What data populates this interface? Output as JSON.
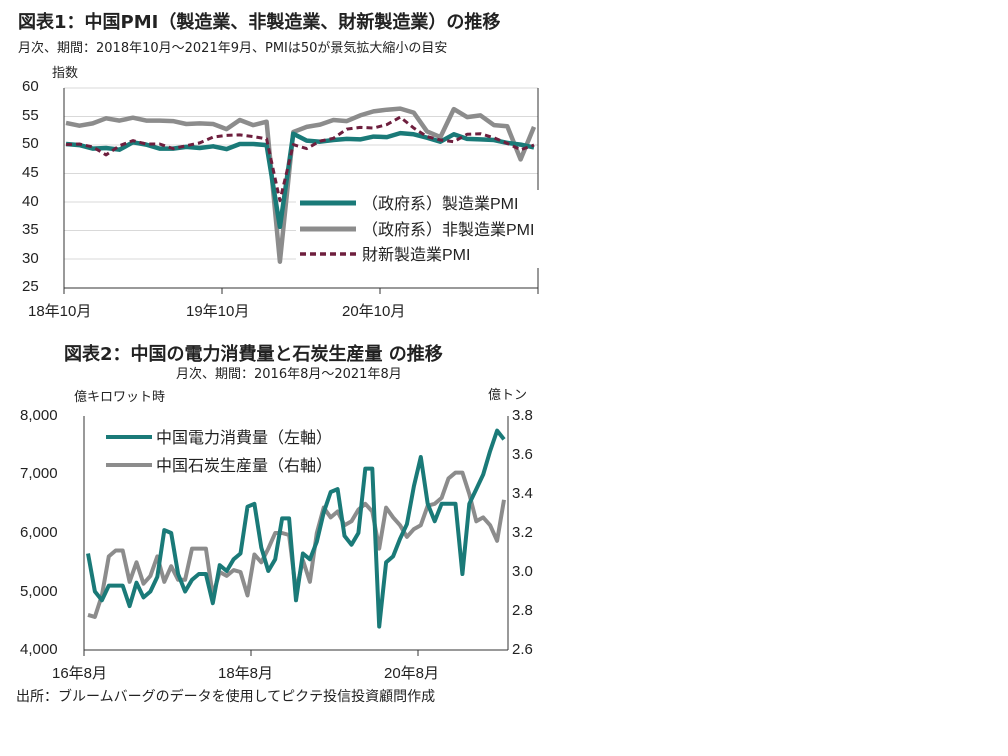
{
  "chart1": {
    "title": "図表1：中国PMI（製造業、非製造業、財新製造業）の推移",
    "subtitle": "月次、期間：2018年10月～2021年9月、PMIは50が景気拡大縮小の目安",
    "ylabel": "指数",
    "yticks": [
      "60",
      "55",
      "50",
      "45",
      "40",
      "35",
      "30",
      "25"
    ],
    "xticks": [
      "18年10月",
      "19年10月",
      "20年10月"
    ]
  },
  "chart2": {
    "title": "図表2：中国の電力消費量と石炭生産量 の推移",
    "subtitle": "月次、期間：2016年8月～2021年8月",
    "ylabel_left": "億キロワット時",
    "ylabel_right": "億トン",
    "yticks_left": [
      "8,000",
      "7,000",
      "6,000",
      "5,000",
      "4,000"
    ],
    "yticks_right": [
      "3.8",
      "3.6",
      "3.4",
      "3.2",
      "3.0",
      "2.8",
      "2.6"
    ],
    "xticks": [
      "16年8月",
      "18年8月",
      "20年8月"
    ]
  },
  "source": "出所：ブルームバーグのデータを使用してピクテ投信投資顧問作成",
  "colors": {
    "teal": "#1a7a78",
    "gray": "#8c8c8c",
    "maroon": "#6e1f3e"
  },
  "chart_data": [
    {
      "type": "line",
      "title": "図表1：中国PMI（製造業、非製造業、財新製造業）の推移",
      "subtitle": "月次、期間：2018年10月～2021年9月、PMIは50が景気拡大縮小の目安",
      "ylabel": "指数",
      "xlabel": "",
      "ylim": [
        25,
        60
      ],
      "yticks": [
        25,
        30,
        35,
        40,
        45,
        50,
        55,
        60
      ],
      "x": [
        "2018-10",
        "2018-11",
        "2018-12",
        "2019-01",
        "2019-02",
        "2019-03",
        "2019-04",
        "2019-05",
        "2019-06",
        "2019-07",
        "2019-08",
        "2019-09",
        "2019-10",
        "2019-11",
        "2019-12",
        "2020-01",
        "2020-02",
        "2020-03",
        "2020-04",
        "2020-05",
        "2020-06",
        "2020-07",
        "2020-08",
        "2020-09",
        "2020-10",
        "2020-11",
        "2020-12",
        "2021-01",
        "2021-02",
        "2021-03",
        "2021-04",
        "2021-05",
        "2021-06",
        "2021-07",
        "2021-08",
        "2021-09"
      ],
      "xtick_labels": {
        "2018-10": "18年10月",
        "2019-10": "19年10月",
        "2020-10": "20年10月"
      },
      "legend_position": "center-right",
      "series": [
        {
          "name": "（政府系）製造業PMI",
          "style": "solid",
          "color": "#1a7a78",
          "values": [
            50.2,
            50.0,
            49.4,
            49.5,
            49.2,
            50.5,
            50.1,
            49.4,
            49.4,
            49.7,
            49.5,
            49.8,
            49.3,
            50.2,
            50.2,
            50.0,
            35.7,
            52.0,
            50.8,
            50.6,
            50.9,
            51.1,
            51.0,
            51.5,
            51.4,
            52.1,
            51.9,
            51.3,
            50.6,
            51.9,
            51.1,
            51.0,
            50.9,
            50.4,
            50.1,
            49.6
          ]
        },
        {
          "name": "（政府系）非製造業PMI",
          "style": "solid",
          "color": "#8c8c8c",
          "values": [
            53.9,
            53.4,
            53.8,
            54.7,
            54.3,
            54.8,
            54.3,
            54.3,
            54.2,
            53.7,
            53.8,
            53.7,
            52.8,
            54.4,
            53.5,
            54.1,
            29.6,
            52.3,
            53.2,
            53.6,
            54.4,
            54.2,
            55.2,
            55.9,
            56.2,
            56.4,
            55.7,
            52.4,
            51.4,
            56.3,
            54.9,
            55.2,
            53.5,
            53.3,
            47.5,
            53.2
          ]
        },
        {
          "name": "財新製造業PMI",
          "style": "dashed",
          "color": "#6e1f3e",
          "values": [
            50.1,
            50.2,
            49.7,
            48.3,
            49.9,
            50.8,
            50.2,
            50.2,
            49.4,
            49.9,
            50.4,
            51.4,
            51.7,
            51.8,
            51.5,
            51.1,
            40.3,
            50.1,
            49.4,
            50.7,
            51.2,
            52.8,
            53.1,
            53.0,
            53.6,
            54.9,
            53.0,
            51.5,
            50.9,
            50.6,
            51.9,
            52.0,
            51.3,
            50.3,
            49.2,
            50.0
          ]
        }
      ]
    },
    {
      "type": "line",
      "title": "図表2：中国の電力消費量と石炭生産量 の推移",
      "subtitle": "月次、期間：2016年8月～2021年8月",
      "ylabel_left": "億キロワット時",
      "ylabel_right": "億トン",
      "xlabel": "",
      "ylim_left": [
        4000,
        8000
      ],
      "yticks_left": [
        4000,
        5000,
        6000,
        7000,
        8000
      ],
      "ylim_right": [
        2.6,
        3.8
      ],
      "yticks_right": [
        2.6,
        2.8,
        3.0,
        3.2,
        3.4,
        3.6,
        3.8
      ],
      "x": [
        "2016-08",
        "2016-09",
        "2016-10",
        "2016-11",
        "2016-12",
        "2017-01",
        "2017-02",
        "2017-03",
        "2017-04",
        "2017-05",
        "2017-06",
        "2017-07",
        "2017-08",
        "2017-09",
        "2017-10",
        "2017-11",
        "2017-12",
        "2018-01",
        "2018-02",
        "2018-03",
        "2018-04",
        "2018-05",
        "2018-06",
        "2018-07",
        "2018-08",
        "2018-09",
        "2018-10",
        "2018-11",
        "2018-12",
        "2019-01",
        "2019-02",
        "2019-03",
        "2019-04",
        "2019-05",
        "2019-06",
        "2019-07",
        "2019-08",
        "2019-09",
        "2019-10",
        "2019-11",
        "2019-12",
        "2020-01",
        "2020-02",
        "2020-03",
        "2020-04",
        "2020-05",
        "2020-06",
        "2020-07",
        "2020-08",
        "2020-09",
        "2020-10",
        "2020-11",
        "2020-12",
        "2021-01",
        "2021-02",
        "2021-03",
        "2021-04",
        "2021-05",
        "2021-06",
        "2021-07",
        "2021-08"
      ],
      "xtick_labels": {
        "2016-08": "16年8月",
        "2018-08": "18年8月",
        "2020-08": "20年8月"
      },
      "legend_position": "top-left",
      "series": [
        {
          "name": "中国電力消費量（左軸）",
          "axis": "left",
          "color": "#1a7a78",
          "values": [
            5650,
            5000,
            4850,
            5100,
            5100,
            5100,
            4750,
            5150,
            4900,
            5000,
            5250,
            6050,
            6000,
            5300,
            5000,
            5200,
            5300,
            5300,
            4800,
            5450,
            5350,
            5550,
            5650,
            6450,
            6500,
            5750,
            5350,
            5550,
            6250,
            6250,
            4850,
            5650,
            5550,
            5850,
            6350,
            6700,
            6750,
            5950,
            5800,
            6000,
            7100,
            7100,
            4400,
            5500,
            5600,
            5900,
            6150,
            6800,
            7300,
            6500,
            6200,
            6500,
            6500,
            6500,
            5300,
            6500,
            6750,
            7000,
            7400,
            7750,
            7600
          ]
        },
        {
          "name": "中国石炭生産量（右軸）",
          "axis": "right",
          "color": "#8c8c8c",
          "values": [
            2.78,
            2.77,
            2.88,
            3.08,
            3.11,
            3.11,
            2.95,
            3.05,
            2.94,
            2.98,
            3.08,
            2.95,
            3.03,
            2.96,
            2.96,
            3.12,
            3.12,
            3.12,
            2.88,
            3.0,
            2.98,
            3.01,
            3.0,
            2.88,
            3.09,
            3.05,
            3.12,
            3.2,
            3.2,
            3.19,
            2.9,
            3.06,
            2.95,
            3.2,
            3.33,
            3.28,
            3.31,
            3.24,
            3.26,
            3.32,
            3.35,
            3.31,
            3.12,
            3.33,
            3.28,
            3.24,
            3.18,
            3.22,
            3.24,
            3.34,
            3.35,
            3.38,
            3.48,
            3.51,
            3.51,
            3.4,
            3.26,
            3.28,
            3.24,
            3.16,
            3.37
          ]
        }
      ]
    }
  ]
}
